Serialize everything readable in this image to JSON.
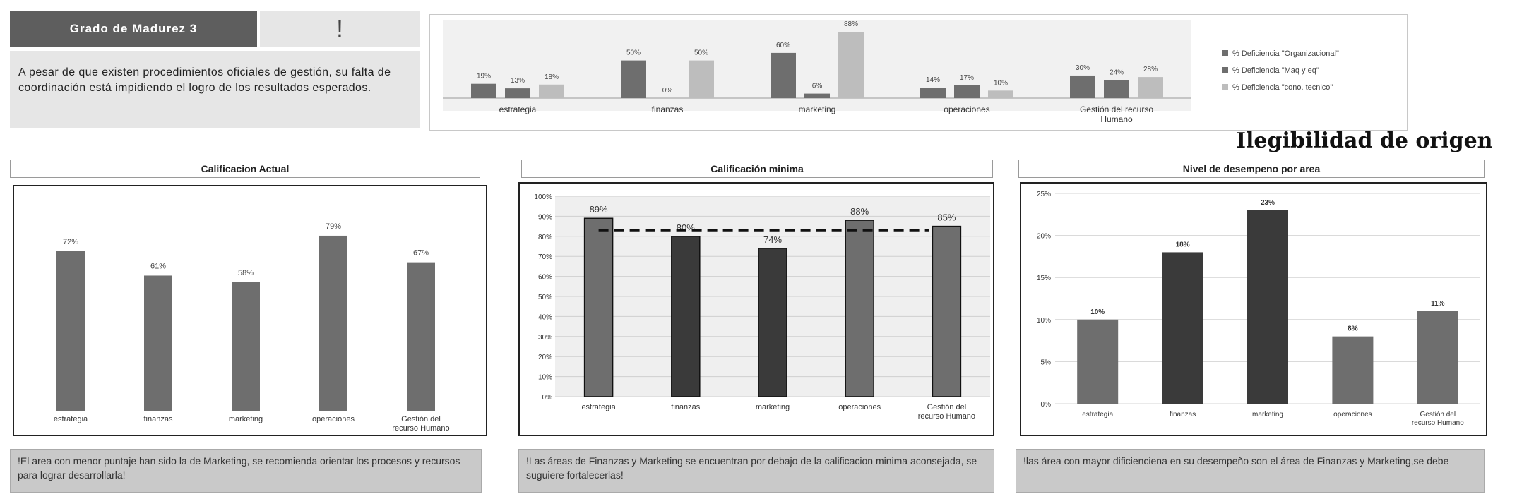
{
  "grado": {
    "title": "Grado de Madurez 3",
    "mark": "!",
    "text": "A pesar de que existen procedimientos oficiales de gestión, su falta de coordinación está impidiendo el logro de los resultados esperados."
  },
  "watermark": "Ilegibilidad de origen",
  "colors": {
    "dark": "#3a3a3a",
    "mid": "#6e6e6e",
    "light": "#bdbdbd"
  },
  "sections": {
    "actual": {
      "title": "Calificacion Actual",
      "note": "!El area con menor  puntaje han sido la de Marketing, se recomienda orientar los procesos y recursos para lograr desarrollarla!"
    },
    "minima": {
      "title": "Calificación minima",
      "note": "!Las áreas de Finanzas y Marketing se encuentran por debajo de la calificacion minima aconsejada, se suguiere fortalecerlas!"
    },
    "desempeno": {
      "title": "Nivel de desempeno por area",
      "note": "!las área con mayor dificienciena en su desempeño  son el área de Finanzas y Marketing,se debe"
    }
  },
  "chart_data": [
    {
      "id": "deficiencias",
      "type": "bar",
      "categories": [
        "estrategia",
        "finanzas",
        "marketing",
        "operaciones",
        "Gestión del recurso Humano"
      ],
      "series": [
        {
          "name": "% Deficiencia \"Organizacional\"",
          "values": [
            19,
            50,
            60,
            14,
            30
          ],
          "labels": [
            "19%",
            "50%",
            "60%",
            "14%",
            "30%"
          ]
        },
        {
          "name": "% Deficiencia \"Maq y eq\"",
          "values": [
            13,
            0,
            6,
            17,
            24
          ],
          "labels": [
            "13%",
            "0%",
            "6%",
            "17%",
            "24%"
          ]
        },
        {
          "name": "% Deficiencia \"cono. tecnico\"",
          "values": [
            18,
            50,
            88,
            10,
            28
          ],
          "labels": [
            "18%",
            "50%",
            "88%",
            "10%",
            "28%"
          ]
        }
      ],
      "legend_position": "right",
      "ylim": [
        0,
        100
      ]
    },
    {
      "id": "actual",
      "type": "bar",
      "categories": [
        "estrategia",
        "finanzas",
        "marketing",
        "operaciones",
        "Gestión del recurso Humano"
      ],
      "values": [
        72,
        61,
        58,
        79,
        67
      ],
      "labels": [
        "72%",
        "61%",
        "58%",
        "79%",
        "67%"
      ],
      "ylim": [
        0,
        100
      ]
    },
    {
      "id": "minima",
      "type": "bar",
      "categories": [
        "estrategia",
        "finanzas",
        "marketing",
        "operaciones",
        "Gestión del recurso Humano"
      ],
      "values": [
        89,
        80,
        74,
        88,
        85
      ],
      "labels": [
        "89%",
        "80%",
        "74%",
        "88%",
        "85%"
      ],
      "reference_line": 83,
      "yticks": [
        "0%",
        "10%",
        "20%",
        "30%",
        "40%",
        "50%",
        "60%",
        "70%",
        "80%",
        "90%",
        "100%"
      ],
      "ylim": [
        0,
        100
      ],
      "grid": true
    },
    {
      "id": "desempeno",
      "type": "bar",
      "categories": [
        "estrategia",
        "finanzas",
        "marketing",
        "operaciones",
        "Gestión del recurso Humano"
      ],
      "values": [
        10,
        18,
        23,
        8,
        11
      ],
      "labels": [
        "10%",
        "18%",
        "23%",
        "8%",
        "11%"
      ],
      "yticks": [
        "0%",
        "5%",
        "10%",
        "15%",
        "20%",
        "25%"
      ],
      "ylim": [
        0,
        25
      ],
      "grid": true
    }
  ]
}
